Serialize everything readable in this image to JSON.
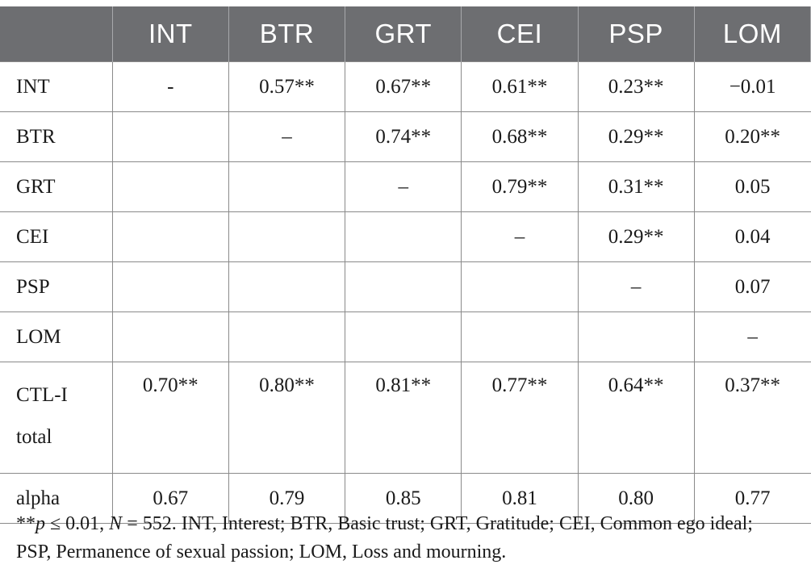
{
  "table": {
    "headers": [
      "",
      "INT",
      "BTR",
      "GRT",
      "CEI",
      "PSP",
      "LOM"
    ],
    "rows": [
      {
        "label": "INT",
        "cells": [
          "-",
          "0.57**",
          "0.67**",
          "0.61**",
          "0.23**",
          "−0.01"
        ]
      },
      {
        "label": "BTR",
        "cells": [
          "",
          "–",
          "0.74**",
          "0.68**",
          "0.29**",
          "0.20**"
        ]
      },
      {
        "label": "GRT",
        "cells": [
          "",
          "",
          "–",
          "0.79**",
          "0.31**",
          "0.05"
        ]
      },
      {
        "label": "CEI",
        "cells": [
          "",
          "",
          "",
          "–",
          "0.29**",
          "0.04"
        ]
      },
      {
        "label": "PSP",
        "cells": [
          "",
          "",
          "",
          "",
          "–",
          "0.07"
        ]
      },
      {
        "label": "LOM",
        "cells": [
          "",
          "",
          "",
          "",
          "",
          "–"
        ]
      },
      {
        "label": "CTL-I total",
        "label_line1": "CTL-I",
        "label_line2": "total",
        "cells": [
          "0.70**",
          "0.80**",
          "0.81**",
          "0.77**",
          "0.64**",
          "0.37**"
        ]
      },
      {
        "label": "alpha",
        "cells": [
          "0.67",
          "0.79",
          "0.85",
          "0.81",
          "0.80",
          "0.77"
        ]
      }
    ]
  },
  "footnote": {
    "stars": "**",
    "p_var": "p",
    "p_rest": " ≤ 0.01, ",
    "n_var": "N",
    "n_rest": " = 552. INT, Interest; BTR, Basic trust; GRT, Gratitude; CEI, Common ego ideal; PSP, Permanence of sexual passion; LOM, Loss and mourning."
  }
}
